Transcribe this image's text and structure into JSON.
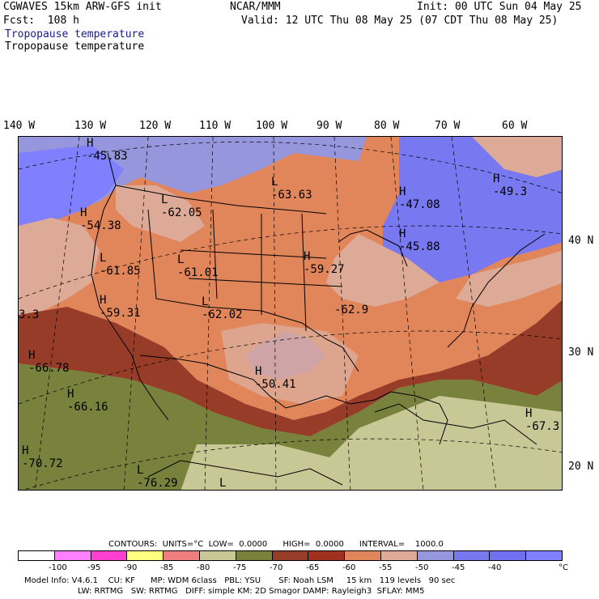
{
  "header": {
    "model": "CGWAVES 15km ARW-GFS init",
    "forecast": "Fcst:  108 h",
    "field1": "Tropopause temperature",
    "field2": "Tropopause temperature",
    "org": "NCAR/MMM",
    "init": "Init: 00 UTC Sun 04 May 25",
    "valid": "Valid: 12 UTC Thu 08 May 25 (07 CDT Thu 08 May 25)"
  },
  "longitudes": [
    "140 W",
    "130 W",
    "120 W",
    "110 W",
    "100 W",
    "90 W",
    "80 W",
    "70 W",
    "60 W"
  ],
  "latitudes": [
    "40 N",
    "30 N",
    "20 N"
  ],
  "map_labels": [
    {
      "kind": "H",
      "value": "-45.83"
    },
    {
      "kind": "L",
      "value": "-63.63"
    },
    {
      "kind": "H",
      "value": "-47.08"
    },
    {
      "kind": "H",
      "value": "-49.3"
    },
    {
      "kind": "L",
      "value": "-62.05"
    },
    {
      "kind": "H",
      "value": "-54.38"
    },
    {
      "kind": "H",
      "value": "-45.88"
    },
    {
      "kind": "L",
      "value": "-61.85"
    },
    {
      "kind": "L",
      "value": "-61.01"
    },
    {
      "kind": "H",
      "value": "-59.27"
    },
    {
      "kind": "",
      "value": "3.3"
    },
    {
      "kind": "H",
      "value": "-59.31"
    },
    {
      "kind": "L",
      "value": "-62.02"
    },
    {
      "kind": "",
      "value": "-62.9"
    },
    {
      "kind": "H",
      "value": "-66.78"
    },
    {
      "kind": "H",
      "value": "-50.41"
    },
    {
      "kind": "H",
      "value": "-66.16"
    },
    {
      "kind": "H",
      "value": "-67.3"
    },
    {
      "kind": "H",
      "value": "-70.72"
    },
    {
      "kind": "L",
      "value": "-76.29"
    },
    {
      "kind": "L",
      "value": ""
    }
  ],
  "contours_line": "CONTOURS:  UNITS=°C  LOW=  0.0000      HIGH=  0.0000      INTERVAL=    1000.0",
  "colorbar": {
    "colors": [
      "#ffffff",
      "#ff80ff",
      "#ff40d0",
      "#ffff80",
      "#f08080",
      "#c8c896",
      "#78823c",
      "#963c28",
      "#a03020",
      "#e0865a",
      "#dcaa96",
      "#9696dc",
      "#7878f0",
      "#7070f0",
      "#8080ff"
    ],
    "ticks": [
      "-100",
      "-95",
      "-90",
      "-85",
      "-80",
      "-75",
      "-70",
      "-65",
      "-60",
      "-55",
      "-50",
      "-45",
      "-40",
      "°C"
    ]
  },
  "footer": {
    "line1": "Model Info: V4.6.1    CU: KF      MP: WDM 6class   PBL: YSU       SF: Noah LSM     15 km   119 levels   90 sec",
    "line2": "LW: RRTMG   SW: RRTMG   DIFF: simple KM: 2D Smagor DAMP: Rayleigh3  SFLAY: MM5"
  }
}
